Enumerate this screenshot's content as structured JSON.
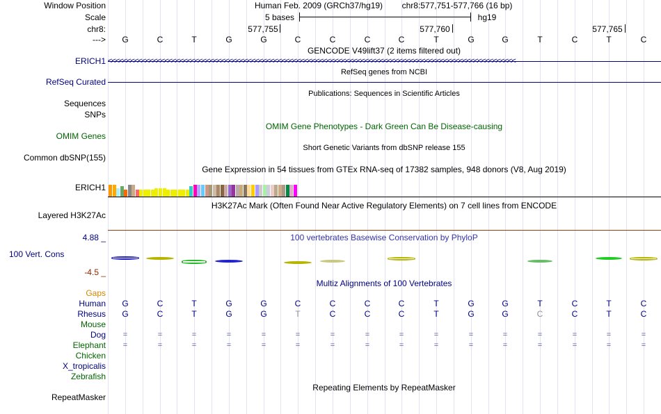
{
  "header": {
    "window_position_label": "Window Position",
    "scale_label": "Scale",
    "chrom_label": "chr8:",
    "strand_label": "--->",
    "assembly": "Human Feb. 2009 (GRCh37/hg19)",
    "position": "chr8:577,751-577,766 (16 bp)",
    "scale_text": "5 bases",
    "db": "hg19",
    "coords": [
      "577,755",
      "577,760",
      "577,765"
    ]
  },
  "sequence": [
    "G",
    "C",
    "T",
    "G",
    "G",
    "C",
    "C",
    "C",
    "C",
    "T",
    "G",
    "G",
    "T",
    "C",
    "T",
    "C"
  ],
  "tracks": {
    "gencode": {
      "title": "GENCODE V49lift37 (2 items filtered out)",
      "item": "ERICH1",
      "strand_glyph": "<<<<<<<<<<<<<<<<<<<<<<<<<<<<<<<<<<<<<<<<<<<<<<<<<<<<<<<<<<<<<<<<<<<<<<<<<<<<<<<<<<<<<<<<<<<<<<<<<<<<<<<<<<<<"
    },
    "refseq": {
      "title": "RefSeq genes from NCBI",
      "label": "RefSeq Curated"
    },
    "publications": {
      "title": "Publications: Sequences in Scientific Articles",
      "label1": "Sequences",
      "label2": "SNPs"
    },
    "omim": {
      "title": "OMIM Gene Phenotypes - Dark Green Can Be Disease-causing",
      "label": "OMIM Genes"
    },
    "dbsnp": {
      "title": "Short Genetic Variants from dbSNP release 155",
      "label": "Common dbSNP(155)"
    },
    "gtex": {
      "title": "Gene Expression in 54 tissues from GTEx RNA-seq of 17382 samples, 948 donors (V8, Aug 2019)",
      "label": "ERICH1"
    },
    "h3k27ac": {
      "title": "H3K27Ac Mark (Often Found Near Active Regulatory Elements) on 7 cell lines from ENCODE",
      "label": "Layered H3K27Ac"
    },
    "phylop": {
      "title": "100 vertebrates Basewise Conservation by PhyloP",
      "label": "100 Vert. Cons",
      "max": "4.88 _",
      "min": "-4.5 _"
    },
    "multiz": {
      "title": "Multiz Alignments of 100 Vertebrates",
      "gaps_label": "Gaps"
    },
    "repeatmasker": {
      "title": "Repeating Elements by RepeatMasker",
      "label": "RepeatMasker"
    }
  },
  "species": [
    {
      "name": "Human",
      "color": "#000080",
      "seq": [
        "G",
        "C",
        "T",
        "G",
        "G",
        "C",
        "C",
        "C",
        "C",
        "T",
        "G",
        "G",
        "T",
        "C",
        "T",
        "C"
      ]
    },
    {
      "name": "Rhesus",
      "color": "#000080",
      "seq": [
        "G",
        "C",
        "T",
        "G",
        "G",
        "T",
        "C",
        "C",
        "C",
        "T",
        "G",
        "G",
        "C",
        "C",
        "T",
        "C"
      ],
      "mismatch": [
        5,
        12
      ]
    },
    {
      "name": "Mouse",
      "color": "#006400",
      "seq": []
    },
    {
      "name": "Dog",
      "color": "#000080",
      "seq": [
        "=",
        "=",
        "=",
        "=",
        "=",
        "=",
        "=",
        "=",
        "=",
        "=",
        "=",
        "=",
        "=",
        "=",
        "=",
        "="
      ]
    },
    {
      "name": "Elephant",
      "color": "#006400",
      "seq": [
        "=",
        "=",
        "=",
        "=",
        "=",
        "=",
        "=",
        "=",
        "=",
        "=",
        "=",
        "=",
        "=",
        "=",
        "=",
        "="
      ]
    },
    {
      "name": "Chicken",
      "color": "#006400",
      "seq": []
    },
    {
      "name": "X_tropicalis",
      "color": "#000080",
      "seq": []
    },
    {
      "name": "Zebrafish",
      "color": "#006400",
      "seq": []
    }
  ],
  "gtex_tissue_colors": [
    "#FF9900",
    "#FFAA00",
    "#AAEEFF",
    "#66AA66",
    "#FF6600",
    "#888888",
    "#CCAA88",
    "#FF6666",
    "#EEEE00",
    "#EEEE00",
    "#EEEE00",
    "#EEEE00",
    "#EEEE00",
    "#EEEE00",
    "#EEEE00",
    "#EEEE00",
    "#EEEE00",
    "#EEEE00",
    "#EEEE00",
    "#EEEE00",
    "#EEEE00",
    "#33CCCC",
    "#FF00BB",
    "#AAAAFF",
    "#66CCFF",
    "#CC9988",
    "#AA9977",
    "#CCBBAA",
    "#AA8866",
    "#886644",
    "#CCAAAA",
    "#9966CC",
    "#993399",
    "#BBAAAA",
    "#CCAA77",
    "#887766",
    "#FFDD99",
    "#FFCC00",
    "#AA99FF",
    "#CCCCCC",
    "#AAEEAA",
    "#CCCCDD",
    "#EECCCC",
    "#BBAA88",
    "#CCAA88",
    "#AA9988",
    "#008844",
    "#DDAACC",
    "#FF00FF"
  ],
  "gtex_levels": [
    0.55,
    0.55,
    0.4,
    0.5,
    0.35,
    0.55,
    0.55,
    0.35,
    0.35,
    0.35,
    0.35,
    0.35,
    0.4,
    0.4,
    0.4,
    0.35,
    0.35,
    0.35,
    0.35,
    0.35,
    0.35,
    0.5,
    0.55,
    0.55,
    0.55,
    0.55,
    0.55,
    0.55,
    0.55,
    0.55,
    0.55,
    0.55,
    0.55,
    0.55,
    0.55,
    0.55,
    0.55,
    0.55,
    0.55,
    0.55,
    0.55,
    0.55,
    0.55,
    0.55,
    0.55,
    0.55,
    0.55,
    0.55,
    0.55
  ],
  "colors": {
    "title": "#000000",
    "blue": "#000080",
    "green": "#006400",
    "phylop_blue": "#3333aa",
    "phylop_max": "#000080",
    "phylop_min": "#8b2500",
    "gaps": "#d28800",
    "h3k27ac": "#8b4513"
  }
}
